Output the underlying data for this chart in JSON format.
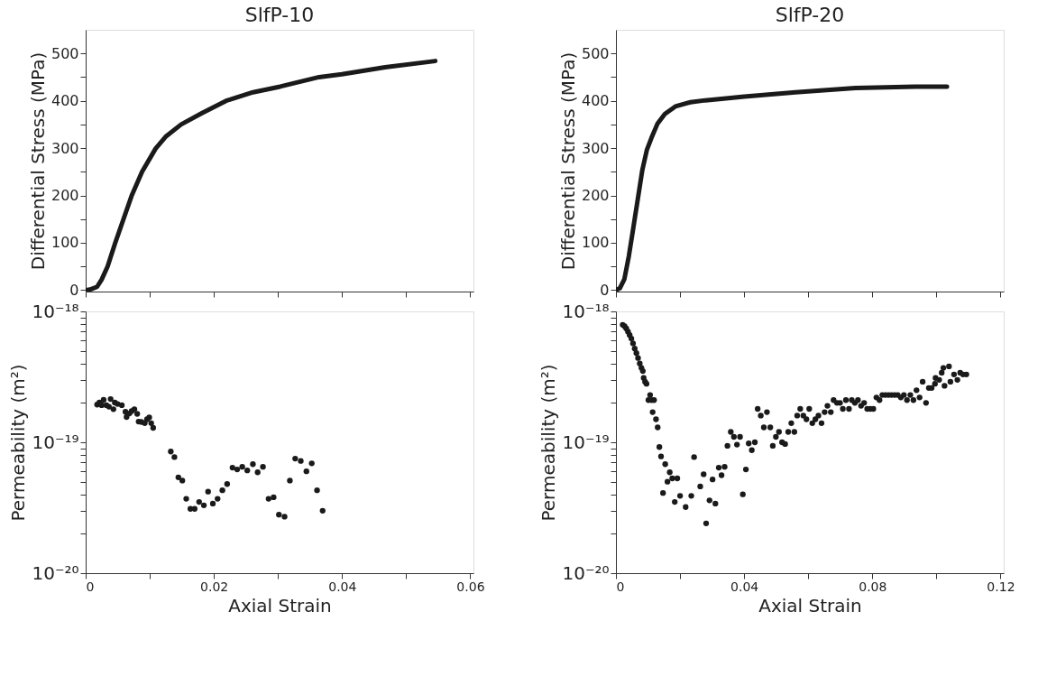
{
  "chart_data": [
    {
      "type": "line",
      "title": "SlfP-10",
      "ylabel": "Differential Stress (MPa)",
      "tick_labels": "y",
      "line_style": "solid",
      "marker": "none",
      "xlim": [
        0,
        0.0605
      ],
      "ylim": [
        -3,
        550
      ],
      "xticks": [
        {
          "value": 0,
          "label": null
        },
        {
          "value": 0.01,
          "label": null
        },
        {
          "value": 0.02,
          "label": null
        },
        {
          "value": 0.03,
          "label": null
        },
        {
          "value": 0.04,
          "label": null
        },
        {
          "value": 0.05,
          "label": null
        },
        {
          "value": 0.06,
          "label": null
        }
      ],
      "yticks": [
        0,
        {
          "value": 50,
          "label": null
        },
        100,
        {
          "value": 150,
          "label": null
        },
        200,
        {
          "value": 250,
          "label": null
        },
        300,
        {
          "value": 350,
          "label": null
        },
        400,
        {
          "value": 450,
          "label": null
        },
        500
      ],
      "series": [
        {
          "color": "#1a1a1a",
          "x": [
            0,
            0.00084,
            0.00178,
            0.00248,
            0.00342,
            0.00459,
            0.0059,
            0.00716,
            0.0088,
            0.01091,
            0.01255,
            0.01489,
            0.01816,
            0.02191,
            0.02612,
            0.03034,
            0.03642,
            0.03998,
            0.04672,
            0.05454
          ],
          "values": [
            0,
            2,
            7,
            22,
            50,
            99,
            150,
            199,
            250,
            299,
            325,
            350,
            374,
            400,
            418,
            430,
            450,
            456,
            471,
            484
          ]
        }
      ]
    },
    {
      "type": "line",
      "title": "SlfP-20",
      "ylabel": "Differential Stress (MPa)",
      "tick_labels": "y",
      "line_style": "solid",
      "marker": "none",
      "xlim": [
        0,
        0.121
      ],
      "ylim": [
        -3,
        550
      ],
      "xticks": [
        {
          "value": 0,
          "label": null
        },
        {
          "value": 0.02,
          "label": null
        },
        {
          "value": 0.04,
          "label": null
        },
        {
          "value": 0.06,
          "label": null
        },
        {
          "value": 0.08,
          "label": null
        },
        {
          "value": 0.1,
          "label": null
        },
        {
          "value": 0.12,
          "label": null
        }
      ],
      "yticks": [
        0,
        {
          "value": 50,
          "label": null
        },
        100,
        {
          "value": 150,
          "label": null
        },
        200,
        {
          "value": 250,
          "label": null
        },
        300,
        {
          "value": 350,
          "label": null
        },
        400,
        {
          "value": 450,
          "label": null
        },
        500
      ],
      "series": [
        {
          "color": "#1a1a1a",
          "x": [
            0,
            0.00122,
            0.00262,
            0.00403,
            0.00543,
            0.00684,
            0.00824,
            0.00964,
            0.01105,
            0.01292,
            0.01526,
            0.01854,
            0.02322,
            0.0279,
            0.04007,
            0.056,
            0.07472,
            0.09345,
            0.10328
          ],
          "values": [
            0,
            4,
            23,
            72,
            132,
            193,
            254,
            296,
            321,
            351,
            372,
            388,
            397,
            401,
            409,
            418,
            427,
            430,
            430
          ]
        }
      ]
    },
    {
      "type": "scatter",
      "xlabel": "Axial Strain",
      "ylabel": "Permeability (m²)",
      "log": "y",
      "marker": "circle",
      "xlim": [
        0,
        0.0605
      ],
      "ylim": [
        1e-20,
        1e-18
      ],
      "xticks": [
        0,
        {
          "value": 0.01,
          "label": null
        },
        0.02,
        {
          "value": 0.03,
          "label": null
        },
        0.04,
        {
          "value": 0.05,
          "label": null
        },
        0.06
      ],
      "yticks": [
        {
          "value": 1e-20,
          "label": "10⁻²⁰"
        },
        {
          "value": 2e-20,
          "label": null
        },
        {
          "value": 3e-20,
          "label": null
        },
        {
          "value": 4e-20,
          "label": null
        },
        {
          "value": 5e-20,
          "label": null
        },
        {
          "value": 6e-20,
          "label": null
        },
        {
          "value": 7e-20,
          "label": null
        },
        {
          "value": 8e-20,
          "label": null
        },
        {
          "value": 9e-20,
          "label": null
        },
        {
          "value": 1e-19,
          "label": "10⁻¹⁹"
        },
        {
          "value": 2e-19,
          "label": null
        },
        {
          "value": 3e-19,
          "label": null
        },
        {
          "value": 4e-19,
          "label": null
        },
        {
          "value": 5e-19,
          "label": null
        },
        {
          "value": 6e-19,
          "label": null
        },
        {
          "value": 7e-19,
          "label": null
        },
        {
          "value": 8e-19,
          "label": null
        },
        {
          "value": 9e-19,
          "label": null
        },
        {
          "value": 1e-18,
          "label": "10⁻¹⁸"
        }
      ],
      "series": [
        {
          "color": "#1a1a1a",
          "x": [
            0.00179,
            0.00214,
            0.00249,
            0.0028,
            0.00323,
            0.00363,
            0.00389,
            0.00433,
            0.00454,
            0.00498,
            0.00533,
            0.00564,
            0.00586,
            0.00621,
            0.00638,
            0.00682,
            0.00717,
            0.0076,
            0.00804,
            0.00826,
            0.0087,
            0.00922,
            0.00957,
            0.00992,
            0.01023,
            0.01053,
            0.01328,
            0.01385,
            0.01446,
            0.01508,
            0.01569,
            0.01634,
            0.017,
            0.0177,
            0.01844,
            0.0191,
            0.01984,
            0.02058,
            0.02133,
            0.02207,
            0.0229,
            0.02364,
            0.02443,
            0.02521,
            0.02609,
            0.02683,
            0.02766,
            0.02854,
            0.02932,
            0.03015,
            0.03103,
            0.03186,
            0.03269,
            0.03356,
            0.03444,
            0.03527,
            0.0361,
            0.03697
          ],
          "values": [
            1.94e-19,
            2.01e-19,
            1.92e-19,
            2.11e-19,
            1.92e-19,
            1.87e-19,
            2.14e-19,
            1.79e-19,
            2.01e-19,
            1.96e-19,
            null,
            1.92e-19,
            null,
            1.71e-19,
            1.56e-19,
            1.66e-19,
            1.73e-19,
            1.79e-19,
            1.65e-19,
            1.44e-19,
            1.43e-19,
            1.4e-19,
            1.5e-19,
            1.55e-19,
            1.4e-19,
            1.29e-19,
            8.5e-20,
            7.7e-20,
            5.4e-20,
            5.1e-20,
            3.7e-20,
            3.1e-20,
            3.1e-20,
            3.5e-20,
            3.3e-20,
            4.2e-20,
            3.4e-20,
            3.7e-20,
            4.3e-20,
            4.8e-20,
            6.4e-20,
            6.2e-20,
            6.5e-20,
            6.1e-20,
            6.8e-20,
            5.9e-20,
            6.5e-20,
            3.7e-20,
            3.8e-20,
            2.8e-20,
            2.7e-20,
            5.1e-20,
            7.5e-20,
            7.2e-20,
            6e-20,
            6.9e-20,
            4.3e-20,
            3e-20
          ]
        }
      ]
    },
    {
      "type": "scatter",
      "xlabel": "Axial Strain",
      "ylabel": "Permeability (m²)",
      "log": "y",
      "marker": "circle",
      "xlim": [
        0,
        0.121
      ],
      "ylim": [
        1e-20,
        1e-18
      ],
      "xticks": [
        0,
        {
          "value": 0.02,
          "label": null
        },
        0.04,
        {
          "value": 0.06,
          "label": null
        },
        0.08,
        {
          "value": 0.1,
          "label": null
        },
        0.12
      ],
      "yticks": [
        {
          "value": 1e-20,
          "label": "10⁻²⁰"
        },
        {
          "value": 2e-20,
          "label": null
        },
        {
          "value": 3e-20,
          "label": null
        },
        {
          "value": 4e-20,
          "label": null
        },
        {
          "value": 5e-20,
          "label": null
        },
        {
          "value": 6e-20,
          "label": null
        },
        {
          "value": 7e-20,
          "label": null
        },
        {
          "value": 8e-20,
          "label": null
        },
        {
          "value": 9e-20,
          "label": null
        },
        {
          "value": 1e-19,
          "label": "10⁻¹⁹"
        },
        {
          "value": 2e-19,
          "label": null
        },
        {
          "value": 3e-19,
          "label": null
        },
        {
          "value": 4e-19,
          "label": null
        },
        {
          "value": 5e-19,
          "label": null
        },
        {
          "value": 6e-19,
          "label": null
        },
        {
          "value": 7e-19,
          "label": null
        },
        {
          "value": 8e-19,
          "label": null
        },
        {
          "value": 9e-19,
          "label": null
        },
        {
          "value": 1e-18,
          "label": "10⁻¹⁸"
        }
      ],
      "series": [
        {
          "color": "#1a1a1a",
          "x": [
            0.0021,
            0.00271,
            0.00323,
            0.00376,
            0.00428,
            0.00481,
            0.00533,
            0.00586,
            0.00638,
            0.0069,
            0.00743,
            0.00795,
            0.00839,
            0.00865,
            0.00909,
            0.00953,
            0.01014,
            0.01066,
            0.0111,
            0.01189,
            0.01145,
            0.0125,
            0.01302,
            0.01355,
            0.01407,
            0.01468,
            0.01538,
            0.01608,
            0.01678,
            0.01757,
            0.01835,
            0.01914,
            0.02001,
            0.02176,
            0.02351,
            0.02438,
            0.02631,
            0.02736,
            0.02814,
            0.02919,
            0.03015,
            0.03103,
            0.03208,
            0.03295,
            0.03391,
            0.03479,
            0.03583,
            0.0368,
            0.03776,
            0.03872,
            0.03959,
            0.04055,
            0.04143,
            0.04239,
            0.04335,
            0.04422,
            0.04519,
            0.04615,
            0.04711,
            0.04816,
            0.04894,
            0.04991,
            0.05087,
            0.05183,
            0.05279,
            0.05375,
            0.05471,
            0.05567,
            0.05655,
            0.05751,
            0.05847,
            0.05943,
            0.06031,
            0.06127,
            0.06223,
            0.06319,
            0.06415,
            0.06511,
            0.06599,
            0.06704,
            0.06791,
            0.06896,
            0.06992,
            0.0708,
            0.07176,
            0.07272,
            0.07359,
            0.07455,
            0.07551,
            0.07648,
            0.07744,
            0.0784,
            0.07936,
            0.08032,
            0.08128,
            0.08224,
            0.08312,
            0.08408,
            0.08504,
            0.086,
            0.08696,
            0.08792,
            0.08889,
            0.08985,
            0.09081,
            0.09186,
            0.09282,
            0.09378,
            0.09474,
            0.0957,
            0.09675,
            0.09763,
            0.0985,
            0.09955,
            0.09972,
            0.10086,
            0.10165,
            0.10217,
            0.10252,
            0.10392,
            0.10436,
            0.10549,
            0.10654,
            0.10741,
            0.10829,
            0.10934
          ],
          "values": [
            7.9e-19,
            7.7e-19,
            7.4e-19,
            7e-19,
            6.6e-19,
            6.2e-19,
            5.7e-19,
            5.2e-19,
            4.8e-19,
            4.4e-19,
            4e-19,
            3.7e-19,
            3.5e-19,
            3.1e-19,
            2.9e-19,
            2.8e-19,
            2.1e-19,
            2.3e-19,
            2.1e-19,
            2.1e-19,
            1.7e-19,
            1.5e-19,
            1.3e-19,
            9.2e-20,
            7.8e-20,
            4.1e-20,
            6.8e-20,
            5e-20,
            5.9e-20,
            5.3e-20,
            3.5e-20,
            5.3e-20,
            3.9e-20,
            3.2e-20,
            3.9e-20,
            7.7e-20,
            4.6e-20,
            5.7e-20,
            2.4e-20,
            3.6e-20,
            5.2e-20,
            3.4e-20,
            6.4e-20,
            5.6e-20,
            6.5e-20,
            9.4e-20,
            1.2e-19,
            1.1e-19,
            9.6e-20,
            1.1e-19,
            4e-20,
            6.2e-20,
            9.8e-20,
            8.7e-20,
            1e-19,
            1.8e-19,
            1.6e-19,
            1.3e-19,
            1.7e-19,
            1.3e-19,
            9.4e-20,
            1.1e-19,
            1.2e-19,
            1e-19,
            9.7e-20,
            1.2e-19,
            1.4e-19,
            1.2e-19,
            1.6e-19,
            1.8e-19,
            1.6e-19,
            1.5e-19,
            1.8e-19,
            1.4e-19,
            1.5e-19,
            1.6e-19,
            1.4e-19,
            1.7e-19,
            1.9e-19,
            1.7e-19,
            2.1e-19,
            2e-19,
            2e-19,
            1.8e-19,
            2.1e-19,
            1.8e-19,
            2.1e-19,
            2e-19,
            2.1e-19,
            1.9e-19,
            2e-19,
            1.8e-19,
            1.8e-19,
            1.8e-19,
            2.2e-19,
            2.1e-19,
            2.3e-19,
            2.3e-19,
            2.3e-19,
            2.3e-19,
            2.3e-19,
            2.3e-19,
            2.2e-19,
            2.3e-19,
            2.1e-19,
            2.3e-19,
            2.1e-19,
            2.5e-19,
            2.2e-19,
            2.9e-19,
            2e-19,
            2.6e-19,
            2.6e-19,
            2.8e-19,
            3.1e-19,
            3e-19,
            3.4e-19,
            3.7e-19,
            2.7e-19,
            3.8e-19,
            2.9e-19,
            3.3e-19,
            3e-19,
            3.4e-19,
            3.3e-19,
            3.3e-19
          ]
        }
      ]
    }
  ]
}
